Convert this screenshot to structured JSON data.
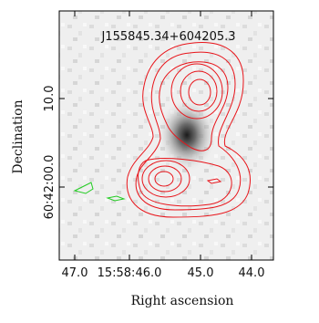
{
  "figure": {
    "title": "J155845.34+604205.3",
    "x_label": "Right ascension",
    "y_label": "Declination",
    "x_ticks": [
      "47.0",
      "15:58:46.0",
      "45.0",
      "44.0"
    ],
    "y_ticks": [
      "10.0",
      "60:42:00.0"
    ]
  }
}
